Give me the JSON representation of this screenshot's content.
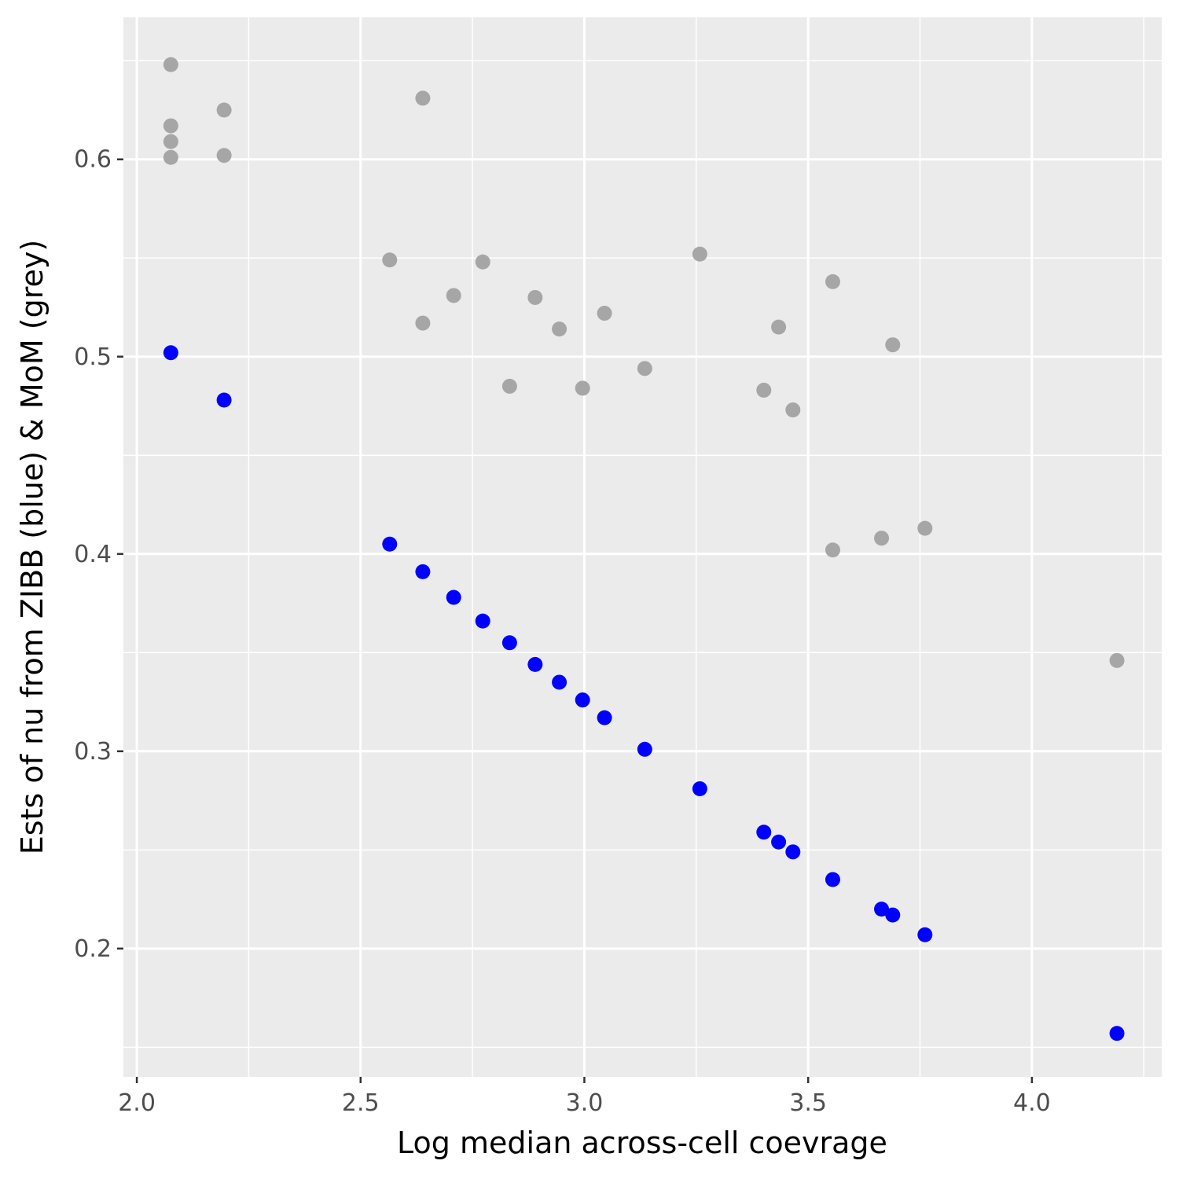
{
  "chart_data": {
    "type": "scatter",
    "title": "",
    "xlabel": "Log median across-cell coevrage",
    "ylabel": "Ests of nu from ZIBB (blue) & MoM (grey)",
    "xlim": [
      1.97,
      4.29
    ],
    "ylim": [
      0.135,
      0.672
    ],
    "x_ticks": [
      2.0,
      2.5,
      3.0,
      3.5,
      4.0
    ],
    "x_tick_labels": [
      "2.0",
      "2.5",
      "3.0",
      "3.5",
      "4.0"
    ],
    "y_ticks": [
      0.2,
      0.3,
      0.4,
      0.5,
      0.6
    ],
    "y_tick_labels": [
      "0.2",
      "0.3",
      "0.4",
      "0.5",
      "0.6"
    ],
    "grid": true,
    "legend": "none",
    "colors": {
      "panel": "#EBEBEB",
      "grid": "#FFFFFF",
      "zibb": "#0000FF",
      "mom": "#A6A6A6"
    },
    "series": [
      {
        "color": "#A6A6A6",
        "points": [
          [
            2.076,
            0.648
          ],
          [
            2.076,
            0.617
          ],
          [
            2.076,
            0.609
          ],
          [
            2.076,
            0.601
          ],
          [
            2.195,
            0.625
          ],
          [
            2.195,
            0.602
          ],
          [
            2.565,
            0.549
          ],
          [
            2.639,
            0.631
          ],
          [
            2.639,
            0.517
          ],
          [
            2.708,
            0.531
          ],
          [
            2.773,
            0.548
          ],
          [
            2.833,
            0.485
          ],
          [
            2.89,
            0.53
          ],
          [
            2.944,
            0.514
          ],
          [
            2.996,
            0.484
          ],
          [
            3.045,
            0.522
          ],
          [
            3.135,
            0.494
          ],
          [
            3.258,
            0.552
          ],
          [
            3.401,
            0.483
          ],
          [
            3.434,
            0.515
          ],
          [
            3.466,
            0.473
          ],
          [
            3.555,
            0.538
          ],
          [
            3.555,
            0.402
          ],
          [
            3.664,
            0.408
          ],
          [
            3.689,
            0.506
          ],
          [
            3.761,
            0.413
          ],
          [
            4.19,
            0.346
          ]
        ]
      },
      {
        "color": "#0000FF",
        "points": [
          [
            2.076,
            0.502
          ],
          [
            2.195,
            0.478
          ],
          [
            2.565,
            0.405
          ],
          [
            2.639,
            0.391
          ],
          [
            2.708,
            0.378
          ],
          [
            2.773,
            0.366
          ],
          [
            2.833,
            0.355
          ],
          [
            2.89,
            0.344
          ],
          [
            2.944,
            0.335
          ],
          [
            2.996,
            0.326
          ],
          [
            3.045,
            0.317
          ],
          [
            3.135,
            0.301
          ],
          [
            3.258,
            0.281
          ],
          [
            3.401,
            0.259
          ],
          [
            3.434,
            0.254
          ],
          [
            3.466,
            0.249
          ],
          [
            3.555,
            0.235
          ],
          [
            3.664,
            0.22
          ],
          [
            3.689,
            0.217
          ],
          [
            3.761,
            0.207
          ],
          [
            4.19,
            0.157
          ]
        ]
      }
    ]
  }
}
